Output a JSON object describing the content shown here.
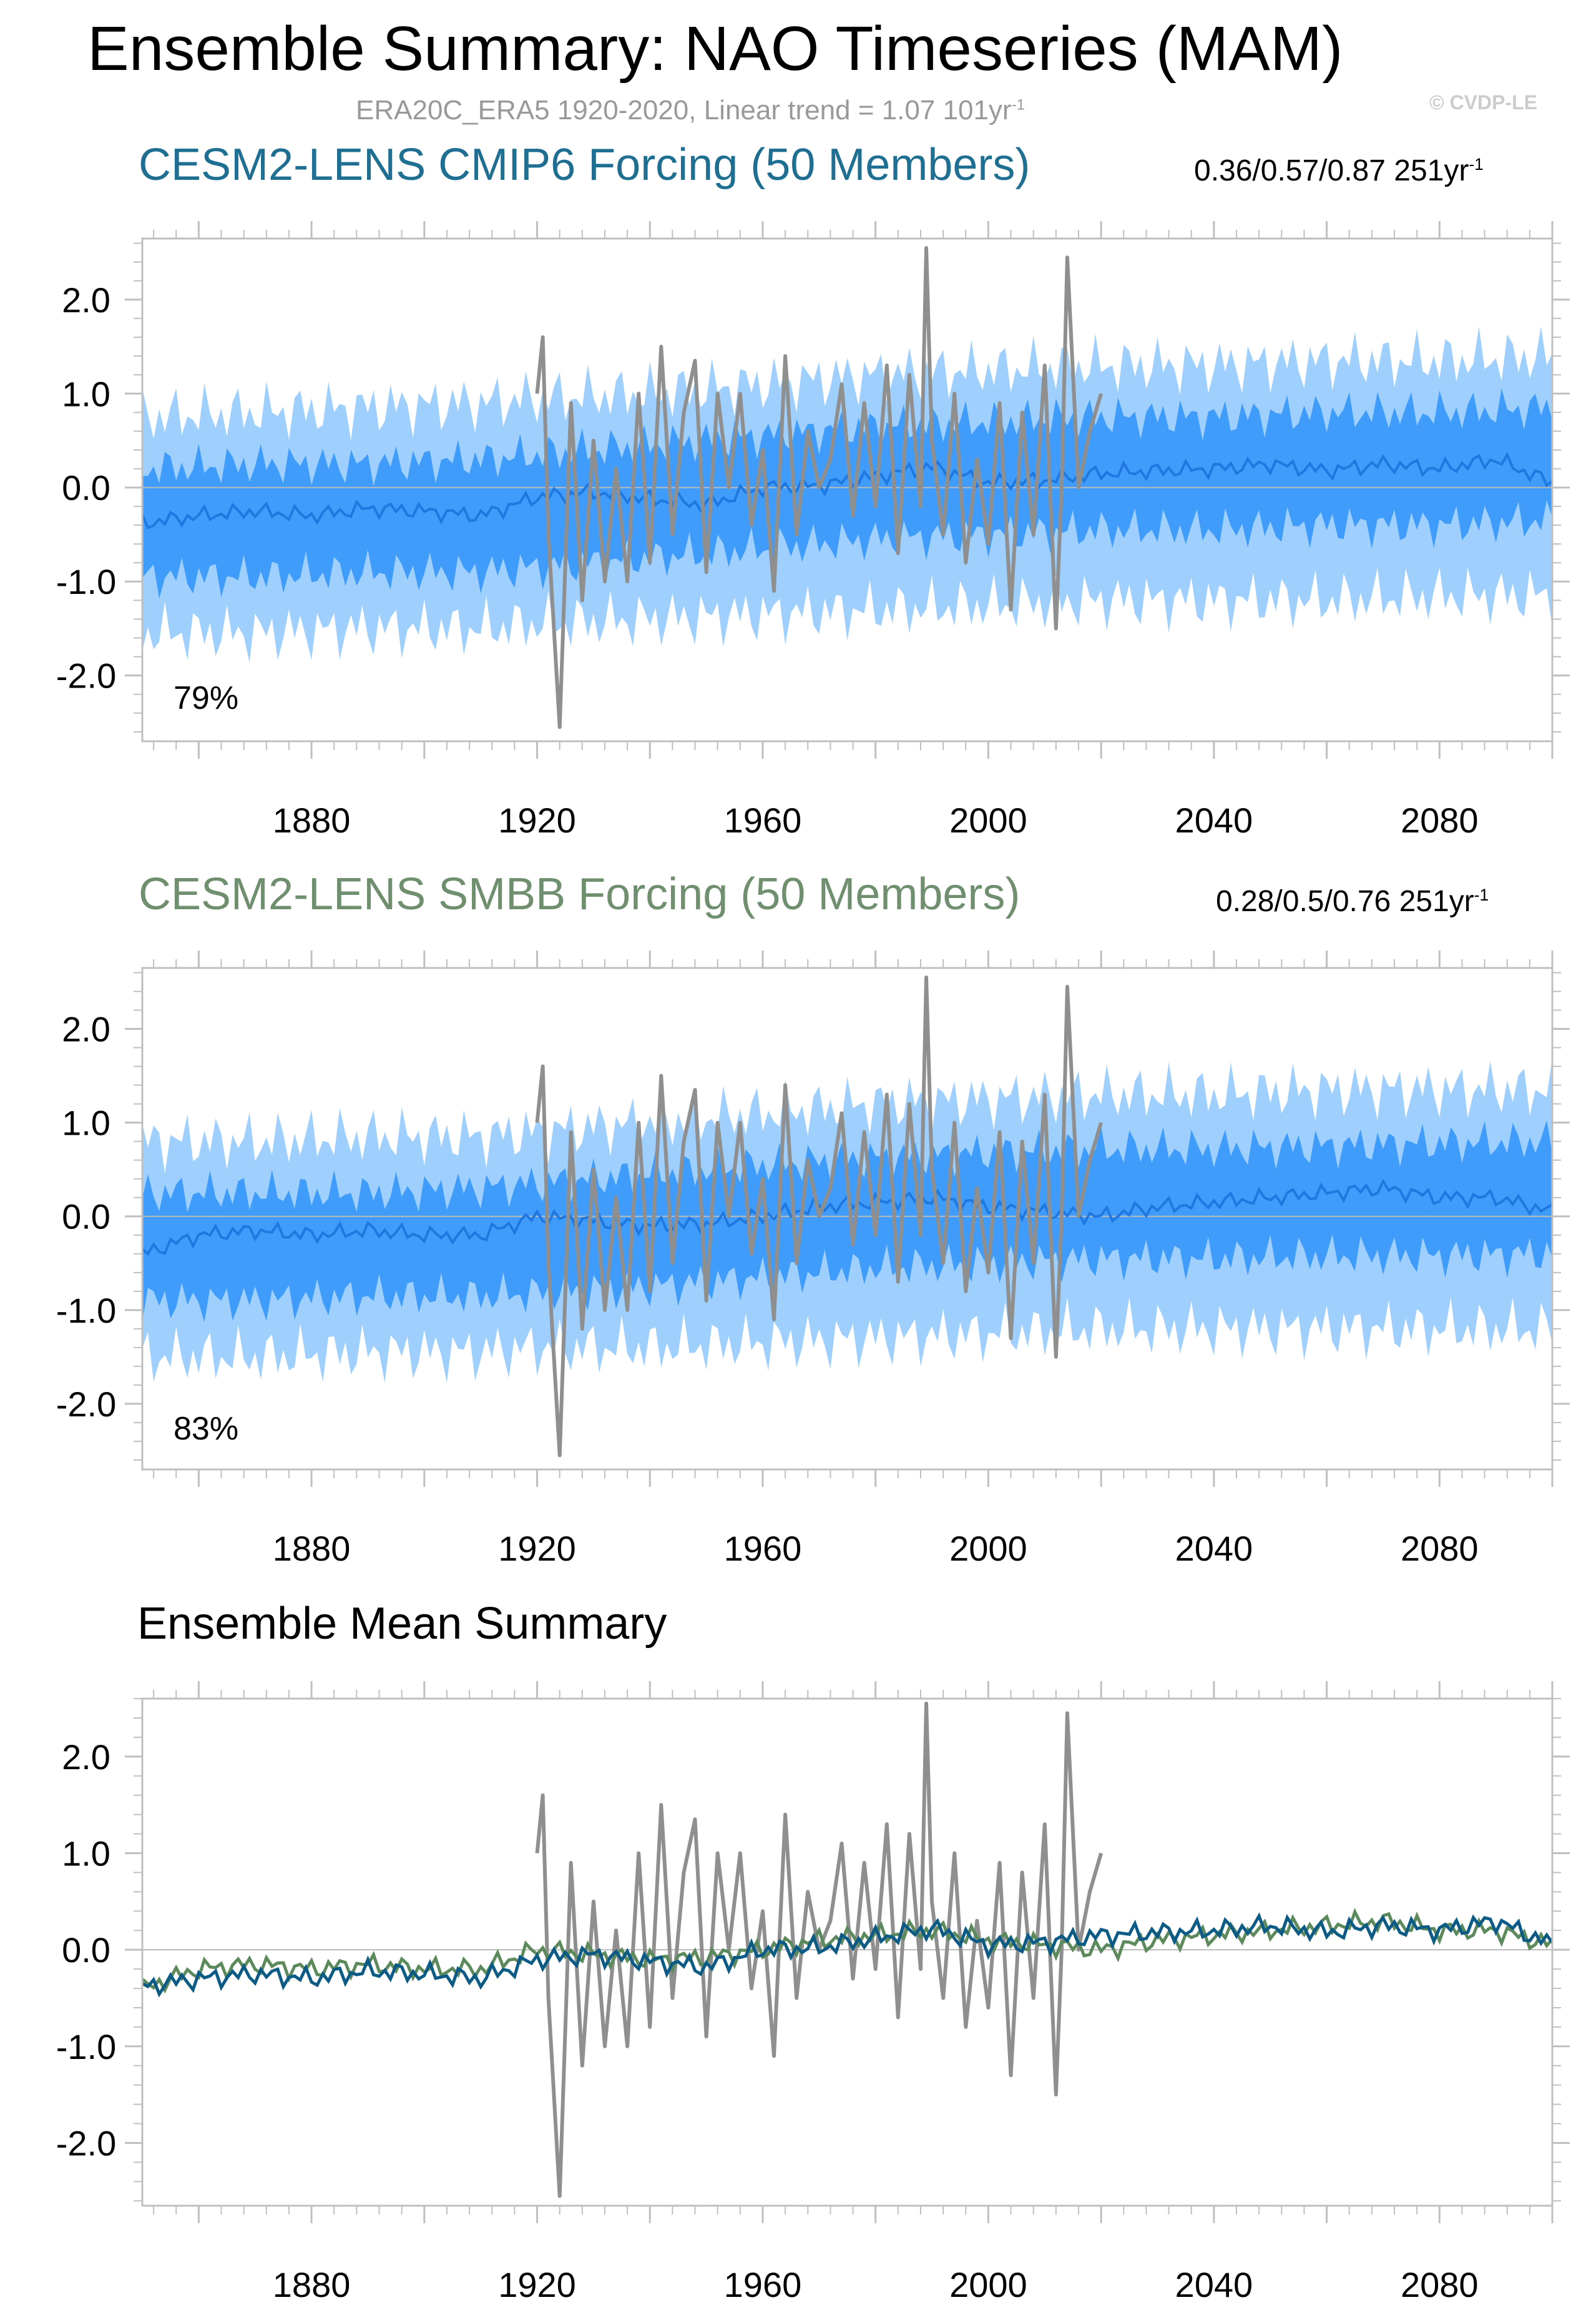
{
  "header": {
    "title": "Ensemble Summary: NAO Timeseries (MAM)",
    "subtitle_main": "ERA20C_ERA5 1920-2020, Linear trend = 1.07 101yr",
    "subtitle_sup": "-1",
    "credit": "© CVDP-LE"
  },
  "colors": {
    "outer_band": "#9fd0fd",
    "inner_band": "#3f9cfa",
    "model_mean_line": "#1e78e0",
    "observations": "#8f8f8f",
    "cmip6_mean": "#0b5b86",
    "smbb_mean": "#5c8a5c",
    "panel1_title": "#1f6f92",
    "panel2_title": "#6f8f6f",
    "zero_line": "#bbbbbb",
    "frame": "#bfbfbf"
  },
  "panels": [
    {
      "title": "CESM2-LENS CMIP6 Forcing (50 Members)",
      "stat_main": "0.36/0.57/0.87 251yr",
      "stat_sup": "-1",
      "percent": "79%"
    },
    {
      "title": "CESM2-LENS SMBB Forcing (50 Members)",
      "stat_main": "0.28/0.5/0.76 251yr",
      "stat_sup": "-1",
      "percent": "83%"
    },
    {
      "title": "Ensemble Mean Summary",
      "stat_main": "",
      "stat_sup": "",
      "percent": ""
    }
  ],
  "chart_data": [
    {
      "type": "area",
      "title": "CESM2-LENS CMIP6 Forcing (50 Members)",
      "xlim": [
        1850,
        2100
      ],
      "ylim": [
        -2.7,
        2.65
      ],
      "x_ticks": [
        1880,
        1920,
        1960,
        2000,
        2040,
        2080
      ],
      "y_ticks": [
        2.0,
        1.0,
        0.0,
        -1.0,
        -2.0
      ],
      "y_tick_labels": [
        "2.0",
        "1.0",
        "0.0",
        "-1.0",
        "-2.0"
      ],
      "annotation": "79%",
      "series": [
        {
          "name": "ensemble outer range",
          "x": [
            1850,
            1870,
            1890,
            1910,
            1920,
            1940,
            1960,
            1980,
            2000,
            2020,
            2040,
            2060,
            2080,
            2100
          ],
          "upper": [
            0.75,
            0.8,
            0.85,
            0.9,
            0.95,
            1.0,
            1.1,
            1.2,
            1.25,
            1.3,
            1.3,
            1.35,
            1.35,
            1.4
          ],
          "lower": [
            -1.55,
            -1.55,
            -1.5,
            -1.5,
            -1.45,
            -1.4,
            -1.35,
            -1.3,
            -1.25,
            -1.2,
            -1.2,
            -1.2,
            -1.15,
            -1.15
          ]
        },
        {
          "name": "ensemble inner range",
          "x": [
            1850,
            1870,
            1890,
            1910,
            1920,
            1940,
            1960,
            1980,
            2000,
            2020,
            2040,
            2060,
            2080,
            2100
          ],
          "upper": [
            0.2,
            0.25,
            0.25,
            0.3,
            0.35,
            0.45,
            0.55,
            0.65,
            0.7,
            0.75,
            0.75,
            0.8,
            0.8,
            0.85
          ],
          "lower": [
            -0.95,
            -0.95,
            -0.9,
            -0.9,
            -0.85,
            -0.75,
            -0.65,
            -0.55,
            -0.5,
            -0.45,
            -0.45,
            -0.4,
            -0.4,
            -0.35
          ]
        },
        {
          "name": "ensemble mean",
          "x": [
            1850,
            1860,
            1870,
            1880,
            1890,
            1900,
            1910,
            1920,
            1930,
            1940,
            1950,
            1960,
            1970,
            1980,
            1990,
            2000,
            2010,
            2020,
            2030,
            2040,
            2050,
            2060,
            2070,
            2080,
            2090,
            2100
          ],
          "y": [
            -0.38,
            -0.3,
            -0.25,
            -0.3,
            -0.22,
            -0.25,
            -0.3,
            -0.1,
            -0.05,
            -0.12,
            -0.18,
            0.0,
            0.02,
            0.12,
            0.22,
            0.05,
            0.08,
            0.15,
            0.18,
            0.2,
            0.25,
            0.18,
            0.25,
            0.2,
            0.3,
            0.05
          ]
        },
        {
          "name": "ERA20C_ERA5",
          "x": [
            1920,
            1921,
            1922,
            1924,
            1926,
            1928,
            1930,
            1932,
            1934,
            1936,
            1938,
            1940,
            1942,
            1944,
            1946,
            1948,
            1950,
            1952,
            1954,
            1956,
            1958,
            1960,
            1962,
            1964,
            1966,
            1968,
            1970,
            1972,
            1974,
            1976,
            1978,
            1980,
            1982,
            1984,
            1986,
            1988,
            1989,
            1990,
            1992,
            1994,
            1996,
            1998,
            2000,
            2002,
            2004,
            2006,
            2008,
            2010,
            2012,
            2013,
            2014,
            2016,
            2018,
            2020
          ],
          "y": [
            1.0,
            1.6,
            -0.5,
            -2.55,
            0.9,
            -1.2,
            0.5,
            -1.0,
            0.2,
            -1.0,
            1.0,
            -0.8,
            1.5,
            -0.5,
            0.8,
            1.35,
            -0.9,
            1.0,
            0.0,
            1.0,
            -0.4,
            0.4,
            -1.1,
            1.4,
            -0.5,
            0.6,
            0.0,
            0.3,
            1.1,
            -0.3,
            0.9,
            -0.2,
            1.3,
            -0.7,
            1.2,
            -0.2,
            2.55,
            0.5,
            -0.5,
            1.0,
            -0.8,
            0.3,
            -0.6,
            0.9,
            -1.3,
            0.8,
            -0.5,
            1.3,
            -1.5,
            0.0,
            2.45,
            0.0,
            0.6,
            1.0
          ]
        }
      ]
    },
    {
      "type": "area",
      "title": "CESM2-LENS SMBB Forcing (50 Members)",
      "xlim": [
        1850,
        2100
      ],
      "ylim": [
        -2.7,
        2.65
      ],
      "x_ticks": [
        1880,
        1920,
        1960,
        2000,
        2040,
        2080
      ],
      "y_ticks": [
        2.0,
        1.0,
        0.0,
        -1.0,
        -2.0
      ],
      "y_tick_labels": [
        "2.0",
        "1.0",
        "0.0",
        "-1.0",
        "-2.0"
      ],
      "annotation": "83%",
      "series": [
        {
          "name": "ensemble outer range",
          "x": [
            1850,
            1870,
            1890,
            1910,
            1920,
            1940,
            1960,
            1980,
            2000,
            2020,
            2040,
            2060,
            2080,
            2100
          ],
          "upper": [
            0.8,
            0.8,
            0.85,
            0.85,
            0.9,
            1.0,
            1.1,
            1.2,
            1.25,
            1.3,
            1.3,
            1.35,
            1.35,
            1.35
          ],
          "lower": [
            -1.5,
            -1.5,
            -1.45,
            -1.45,
            -1.4,
            -1.4,
            -1.35,
            -1.3,
            -1.25,
            -1.2,
            -1.2,
            -1.2,
            -1.2,
            -1.2
          ]
        },
        {
          "name": "ensemble inner range",
          "x": [
            1850,
            1870,
            1890,
            1910,
            1920,
            1940,
            1960,
            1980,
            2000,
            2020,
            2040,
            2060,
            2080,
            2100
          ],
          "upper": [
            0.25,
            0.25,
            0.25,
            0.3,
            0.35,
            0.45,
            0.55,
            0.62,
            0.68,
            0.72,
            0.72,
            0.75,
            0.78,
            0.8
          ],
          "lower": [
            -0.9,
            -0.9,
            -0.85,
            -0.85,
            -0.82,
            -0.75,
            -0.65,
            -0.55,
            -0.5,
            -0.45,
            -0.45,
            -0.42,
            -0.42,
            -0.4
          ]
        },
        {
          "name": "ensemble mean",
          "x": [
            1850,
            1860,
            1870,
            1880,
            1890,
            1900,
            1910,
            1920,
            1930,
            1940,
            1950,
            1960,
            1970,
            1980,
            1990,
            2000,
            2010,
            2020,
            2030,
            2040,
            2050,
            2060,
            2070,
            2080,
            2090,
            2100
          ],
          "y": [
            -0.4,
            -0.2,
            -0.15,
            -0.2,
            -0.15,
            -0.2,
            -0.2,
            0.0,
            -0.05,
            -0.1,
            -0.08,
            0.0,
            0.1,
            0.15,
            0.2,
            0.1,
            0.05,
            0.0,
            0.1,
            0.15,
            0.2,
            0.25,
            0.3,
            0.2,
            0.2,
            0.05
          ]
        },
        {
          "name": "ERA20C_ERA5",
          "x": [
            1920,
            1921,
            1922,
            1924,
            1926,
            1928,
            1930,
            1932,
            1934,
            1936,
            1938,
            1940,
            1942,
            1944,
            1946,
            1948,
            1950,
            1952,
            1954,
            1956,
            1958,
            1960,
            1962,
            1964,
            1966,
            1968,
            1970,
            1972,
            1974,
            1976,
            1978,
            1980,
            1982,
            1984,
            1986,
            1988,
            1989,
            1990,
            1992,
            1994,
            1996,
            1998,
            2000,
            2002,
            2004,
            2006,
            2008,
            2010,
            2012,
            2013,
            2014,
            2016,
            2018,
            2020
          ],
          "y": [
            1.0,
            1.6,
            -0.5,
            -2.55,
            0.9,
            -1.2,
            0.5,
            -1.0,
            0.2,
            -1.0,
            1.0,
            -0.8,
            1.5,
            -0.5,
            0.8,
            1.35,
            -0.9,
            1.0,
            0.0,
            1.0,
            -0.4,
            0.4,
            -1.1,
            1.4,
            -0.5,
            0.6,
            0.0,
            0.3,
            1.1,
            -0.3,
            0.9,
            -0.2,
            1.3,
            -0.7,
            1.2,
            -0.2,
            2.55,
            0.5,
            -0.5,
            1.0,
            -0.8,
            0.3,
            -0.6,
            0.9,
            -1.3,
            0.8,
            -0.5,
            1.3,
            -1.5,
            0.0,
            2.45,
            0.0,
            0.6,
            1.0
          ]
        }
      ]
    },
    {
      "type": "line",
      "title": "Ensemble Mean Summary",
      "xlim": [
        1850,
        2100
      ],
      "ylim": [
        -2.65,
        2.6
      ],
      "x_ticks": [
        1880,
        1920,
        1960,
        2000,
        2040,
        2080
      ],
      "y_ticks": [
        2.0,
        1.0,
        0.0,
        -1.0,
        -2.0
      ],
      "y_tick_labels": [
        "2.0",
        "1.0",
        "0.0",
        "-1.0",
        "-2.0"
      ],
      "annotation": "",
      "series": [
        {
          "name": "ERA20C_ERA5",
          "x": [
            1920,
            1921,
            1922,
            1924,
            1926,
            1928,
            1930,
            1932,
            1934,
            1936,
            1938,
            1940,
            1942,
            1944,
            1946,
            1948,
            1950,
            1952,
            1954,
            1956,
            1958,
            1960,
            1962,
            1964,
            1966,
            1968,
            1970,
            1972,
            1974,
            1976,
            1978,
            1980,
            1982,
            1984,
            1986,
            1988,
            1989,
            1990,
            1992,
            1994,
            1996,
            1998,
            2000,
            2002,
            2004,
            2006,
            2008,
            2010,
            2012,
            2013,
            2014,
            2016,
            2018,
            2020
          ],
          "y": [
            1.0,
            1.6,
            -0.5,
            -2.55,
            0.9,
            -1.2,
            0.5,
            -1.0,
            0.2,
            -1.0,
            1.0,
            -0.8,
            1.5,
            -0.5,
            0.8,
            1.35,
            -0.9,
            1.0,
            0.0,
            1.0,
            -0.4,
            0.4,
            -1.1,
            1.4,
            -0.5,
            0.6,
            0.0,
            0.3,
            1.1,
            -0.3,
            0.9,
            -0.2,
            1.3,
            -0.7,
            1.2,
            -0.2,
            2.55,
            0.5,
            -0.5,
            1.0,
            -0.8,
            0.3,
            -0.6,
            0.9,
            -1.3,
            0.8,
            -0.5,
            1.3,
            -1.5,
            0.0,
            2.45,
            0.0,
            0.6,
            1.0
          ]
        },
        {
          "name": "CESM2-LENS CMIP6 Forcing",
          "x": [
            1850,
            1860,
            1870,
            1880,
            1890,
            1900,
            1910,
            1920,
            1930,
            1940,
            1950,
            1960,
            1970,
            1980,
            1990,
            2000,
            2010,
            2020,
            2030,
            2040,
            2050,
            2060,
            2070,
            2080,
            2090,
            2100
          ],
          "y": [
            -0.38,
            -0.3,
            -0.25,
            -0.3,
            -0.22,
            -0.25,
            -0.3,
            -0.1,
            -0.05,
            -0.12,
            -0.18,
            0.0,
            0.02,
            0.12,
            0.22,
            0.05,
            0.08,
            0.15,
            0.18,
            0.2,
            0.25,
            0.18,
            0.25,
            0.2,
            0.3,
            0.05
          ]
        },
        {
          "name": "CESM2-LENS SMBB Forcing",
          "x": [
            1850,
            1860,
            1870,
            1880,
            1890,
            1900,
            1910,
            1920,
            1930,
            1940,
            1950,
            1960,
            1970,
            1980,
            1990,
            2000,
            2010,
            2020,
            2030,
            2040,
            2050,
            2060,
            2070,
            2080,
            2090,
            2100
          ],
          "y": [
            -0.4,
            -0.2,
            -0.15,
            -0.2,
            -0.15,
            -0.2,
            -0.2,
            0.0,
            -0.05,
            -0.1,
            -0.08,
            0.0,
            0.1,
            0.15,
            0.2,
            0.1,
            0.05,
            0.0,
            0.1,
            0.15,
            0.2,
            0.25,
            0.3,
            0.2,
            0.2,
            0.05
          ]
        }
      ]
    }
  ]
}
